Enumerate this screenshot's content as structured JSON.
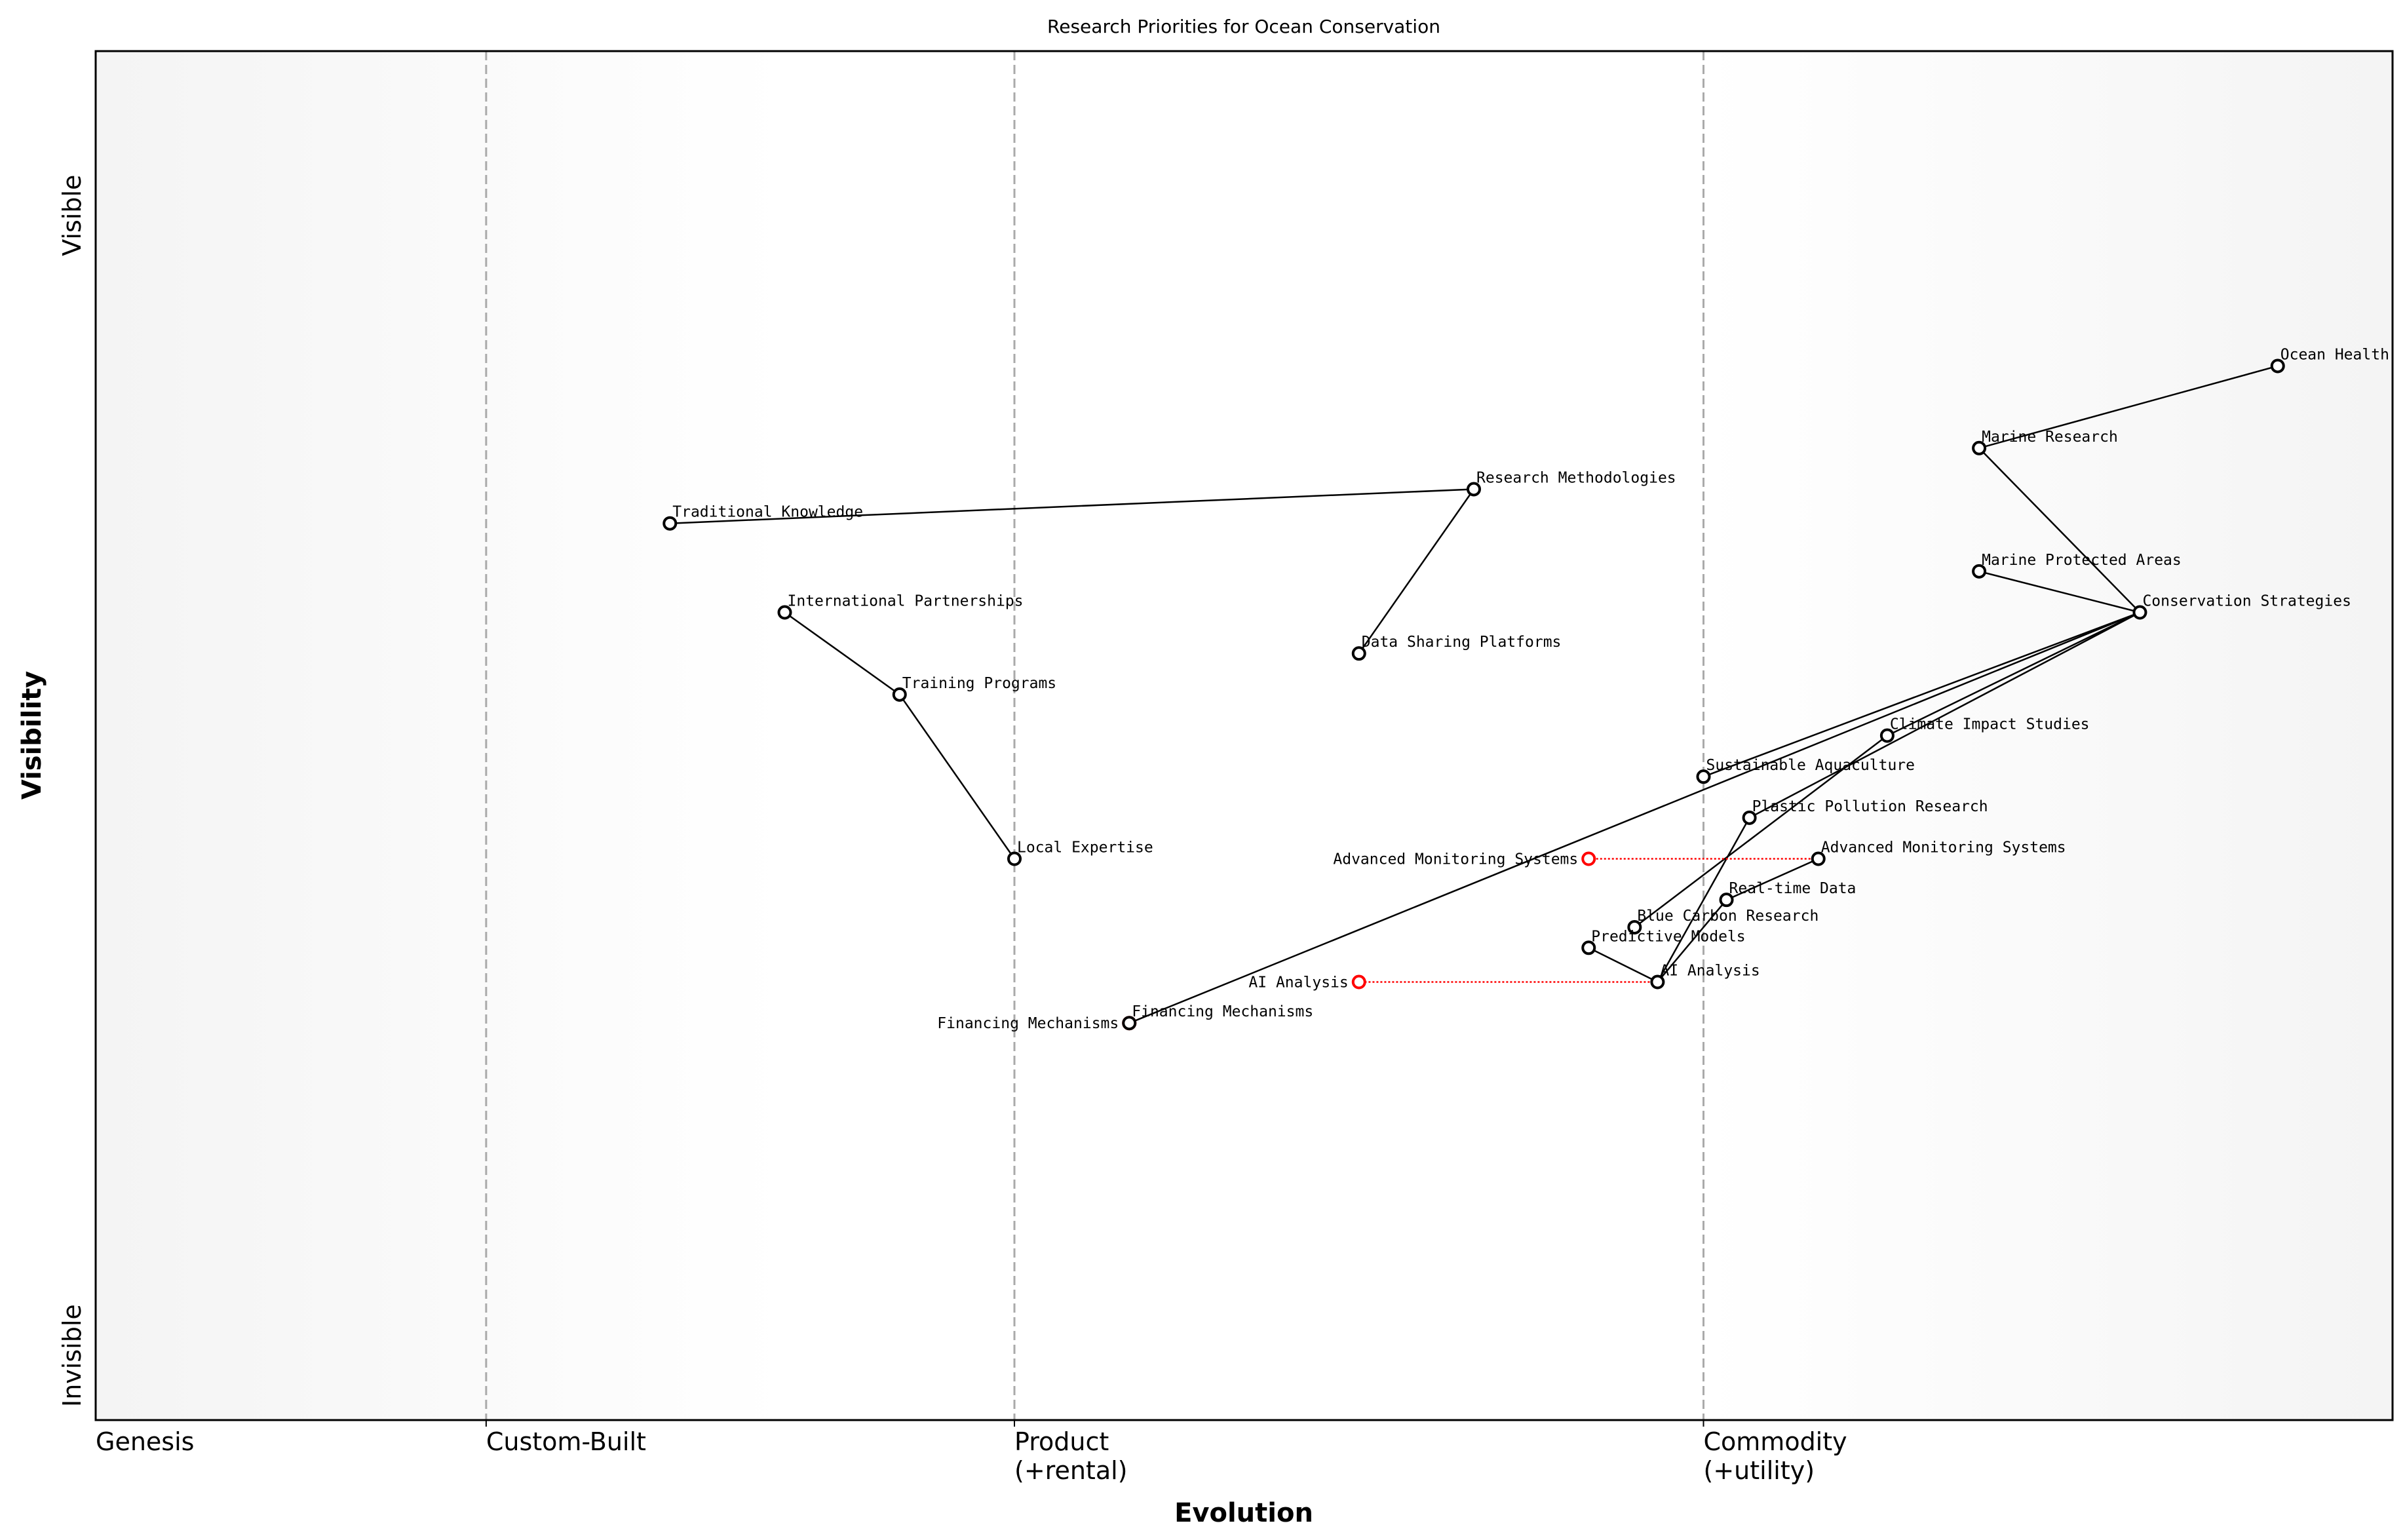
{
  "chart_data": {
    "type": "wardley-map",
    "title": "Research Priorities for Ocean Conservation",
    "xlabel": "Evolution",
    "ylabel": "Visibility",
    "xlim": [
      0,
      1
    ],
    "ylim": [
      0,
      1
    ],
    "y_ticks": [
      {
        "value": 0.88,
        "label": "Visible"
      },
      {
        "value": 0.0,
        "label": "Invisible"
      }
    ],
    "stages": [
      {
        "value": 0.0,
        "label": "Genesis"
      },
      {
        "value": 0.17,
        "label": "Custom-Built"
      },
      {
        "value": 0.4,
        "label": "Product\n(+rental)"
      },
      {
        "value": 0.7,
        "label": "Commodity\n(+utility)"
      }
    ],
    "stage_dividers": [
      0.17,
      0.4,
      0.7
    ],
    "colors": {
      "node": "#000000",
      "evolved": "#ff0000",
      "divider": "#aaaaaa",
      "background_edge": "#f4f4f4"
    },
    "components": [
      {
        "name": "Ocean Health",
        "x": 0.95,
        "y": 0.77
      },
      {
        "name": "Marine Research",
        "x": 0.82,
        "y": 0.71
      },
      {
        "name": "Marine Protected Areas",
        "x": 0.82,
        "y": 0.62
      },
      {
        "name": "Conservation Strategies",
        "x": 0.89,
        "y": 0.59
      },
      {
        "name": "Climate Impact Studies",
        "x": 0.78,
        "y": 0.5
      },
      {
        "name": "Sustainable Aquaculture",
        "x": 0.7,
        "y": 0.47
      },
      {
        "name": "Plastic Pollution Research",
        "x": 0.72,
        "y": 0.44
      },
      {
        "name": "Advanced Monitoring Systems",
        "x": 0.75,
        "y": 0.41
      },
      {
        "name": "Real-time Data",
        "x": 0.71,
        "y": 0.38
      },
      {
        "name": "Blue Carbon Research",
        "x": 0.67,
        "y": 0.36
      },
      {
        "name": "Predictive Models",
        "x": 0.65,
        "y": 0.345
      },
      {
        "name": "AI Analysis",
        "x": 0.68,
        "y": 0.32
      },
      {
        "name": "Financing Mechanisms",
        "x": 0.45,
        "y": 0.29
      },
      {
        "name": "Local Expertise",
        "x": 0.4,
        "y": 0.41
      },
      {
        "name": "Training Programs",
        "x": 0.35,
        "y": 0.53
      },
      {
        "name": "International Partnerships",
        "x": 0.3,
        "y": 0.59
      },
      {
        "name": "Traditional Knowledge",
        "x": 0.25,
        "y": 0.655
      },
      {
        "name": "Research Methodologies",
        "x": 0.6,
        "y": 0.68
      },
      {
        "name": "Data Sharing Platforms",
        "x": 0.55,
        "y": 0.56
      }
    ],
    "evolutions": [
      {
        "name": "Advanced Monitoring Systems",
        "from_x": 0.75,
        "to_x": 0.65,
        "y": 0.41
      },
      {
        "name": "AI Analysis",
        "from_x": 0.68,
        "to_x": 0.55,
        "y": 0.32
      },
      {
        "name": "Financing Mechanisms",
        "from_x": 0.45,
        "to_x": 0.45,
        "y": 0.29
      }
    ],
    "links": [
      [
        "Ocean Health",
        "Marine Research"
      ],
      [
        "Marine Research",
        "Conservation Strategies"
      ],
      [
        "Marine Protected Areas",
        "Conservation Strategies"
      ],
      [
        "Conservation Strategies",
        "Financing Mechanisms"
      ],
      [
        "Conservation Strategies",
        "Sustainable Aquaculture"
      ],
      [
        "Conservation Strategies",
        "Climate Impact Studies"
      ],
      [
        "Conservation Strategies",
        "Plastic Pollution Research"
      ],
      [
        "Climate Impact Studies",
        "Blue Carbon Research"
      ],
      [
        "Plastic Pollution Research",
        "AI Analysis"
      ],
      [
        "Advanced Monitoring Systems",
        "Real-time Data"
      ],
      [
        "Real-time Data",
        "AI Analysis"
      ],
      [
        "Predictive Models",
        "AI Analysis"
      ],
      [
        "Traditional Knowledge",
        "Research Methodologies"
      ],
      [
        "Research Methodologies",
        "Data Sharing Platforms"
      ],
      [
        "International Partnerships",
        "Training Programs"
      ],
      [
        "Training Programs",
        "Local Expertise"
      ]
    ]
  }
}
